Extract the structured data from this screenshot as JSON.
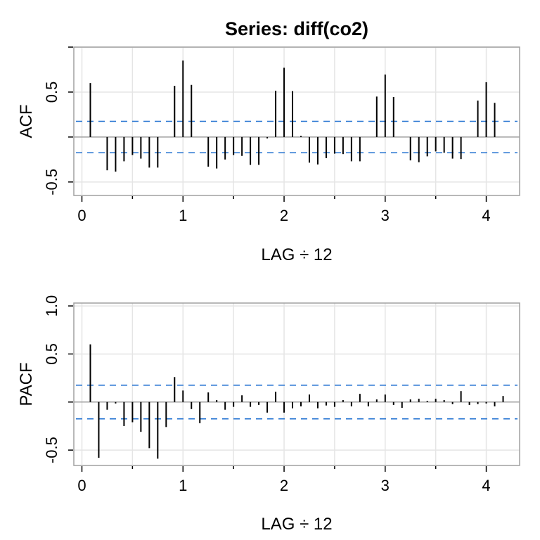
{
  "title": "Series:  diff(co2)",
  "colors": {
    "bar": "#000000",
    "ci": "#1E6FD0",
    "grid": "#E5E5E5",
    "frame": "#A0A0A0",
    "zero": "#A0A0A0"
  },
  "chart_data": [
    {
      "type": "bar",
      "ylabel": "ACF",
      "xlabel": "LAG ÷ 12",
      "xlim": [
        -0.08,
        4.33
      ],
      "ylim": [
        -0.65,
        1.0
      ],
      "xticks": [
        0,
        1,
        2,
        3,
        4
      ],
      "xtick_labels": [
        "0",
        "1",
        "2",
        "3",
        "4"
      ],
      "xminor_ticks": [
        0.5,
        1.5,
        2.5,
        3.5
      ],
      "yticks": [
        1.0,
        0.5,
        0,
        -0.5
      ],
      "ytick_labels": [
        "0.5",
        "-0.5"
      ],
      "ytick_label_values": [
        0.5,
        -0.5
      ],
      "grid": true,
      "confidence_bound": 0.175,
      "lag_unit": 12,
      "lags": [
        1,
        2,
        3,
        4,
        5,
        6,
        7,
        8,
        9,
        10,
        11,
        12,
        13,
        14,
        15,
        16,
        17,
        18,
        19,
        20,
        21,
        22,
        23,
        24,
        25,
        26,
        27,
        28,
        29,
        30,
        31,
        32,
        33,
        34,
        35,
        36,
        37,
        38,
        39,
        40,
        41,
        42,
        43,
        44,
        45,
        46,
        47,
        48,
        49
      ],
      "values": [
        0.6,
        0.0,
        -0.37,
        -0.385,
        -0.27,
        -0.2,
        -0.24,
        -0.34,
        -0.34,
        0.0,
        0.57,
        0.85,
        0.58,
        0.0,
        -0.33,
        -0.35,
        -0.25,
        -0.2,
        -0.21,
        -0.31,
        -0.31,
        -0.015,
        0.515,
        0.77,
        0.51,
        0.013,
        -0.285,
        -0.305,
        -0.235,
        -0.185,
        -0.19,
        -0.27,
        -0.27,
        0.0,
        0.45,
        0.695,
        0.445,
        0.0,
        -0.26,
        -0.28,
        -0.215,
        -0.16,
        -0.175,
        -0.24,
        -0.245,
        0.0,
        0.405,
        0.61,
        0.38
      ]
    },
    {
      "type": "bar",
      "ylabel": "PACF",
      "xlabel": "LAG ÷ 12",
      "xlim": [
        -0.08,
        4.33
      ],
      "ylim": [
        -0.66,
        1.03
      ],
      "xticks": [
        0,
        1,
        2,
        3,
        4
      ],
      "xtick_labels": [
        "0",
        "1",
        "2",
        "3",
        "4"
      ],
      "xminor_ticks": [
        0.5,
        1.5,
        2.5,
        3.5
      ],
      "yticks": [
        1.0,
        0.5,
        0,
        -0.5
      ],
      "ytick_labels": [
        "1.0",
        "0.5",
        "-0.5"
      ],
      "ytick_label_values": [
        1.0,
        0.5,
        -0.5
      ],
      "grid": true,
      "confidence_bound": 0.175,
      "lag_unit": 12,
      "lags": [
        1,
        2,
        3,
        4,
        5,
        6,
        7,
        8,
        9,
        10,
        11,
        12,
        13,
        14,
        15,
        16,
        17,
        18,
        19,
        20,
        21,
        22,
        23,
        24,
        25,
        26,
        27,
        28,
        29,
        30,
        31,
        32,
        33,
        34,
        35,
        36,
        37,
        38,
        39,
        40,
        41,
        42,
        43,
        44,
        45,
        46,
        47,
        48,
        49,
        50
      ],
      "values": [
        0.6,
        -0.58,
        -0.08,
        -0.015,
        -0.25,
        -0.21,
        -0.31,
        -0.48,
        -0.59,
        -0.26,
        0.26,
        0.12,
        -0.073,
        -0.22,
        0.1,
        0.02,
        -0.08,
        -0.05,
        0.07,
        -0.05,
        -0.03,
        -0.11,
        0.107,
        -0.11,
        -0.065,
        -0.045,
        0.078,
        -0.065,
        -0.036,
        -0.05,
        0.02,
        -0.045,
        0.085,
        -0.045,
        0.027,
        0.078,
        -0.03,
        -0.06,
        0.027,
        0.034,
        0.012,
        0.034,
        0.02,
        -0.022,
        0.114,
        -0.03,
        -0.022,
        -0.015,
        -0.045,
        0.063
      ]
    }
  ]
}
